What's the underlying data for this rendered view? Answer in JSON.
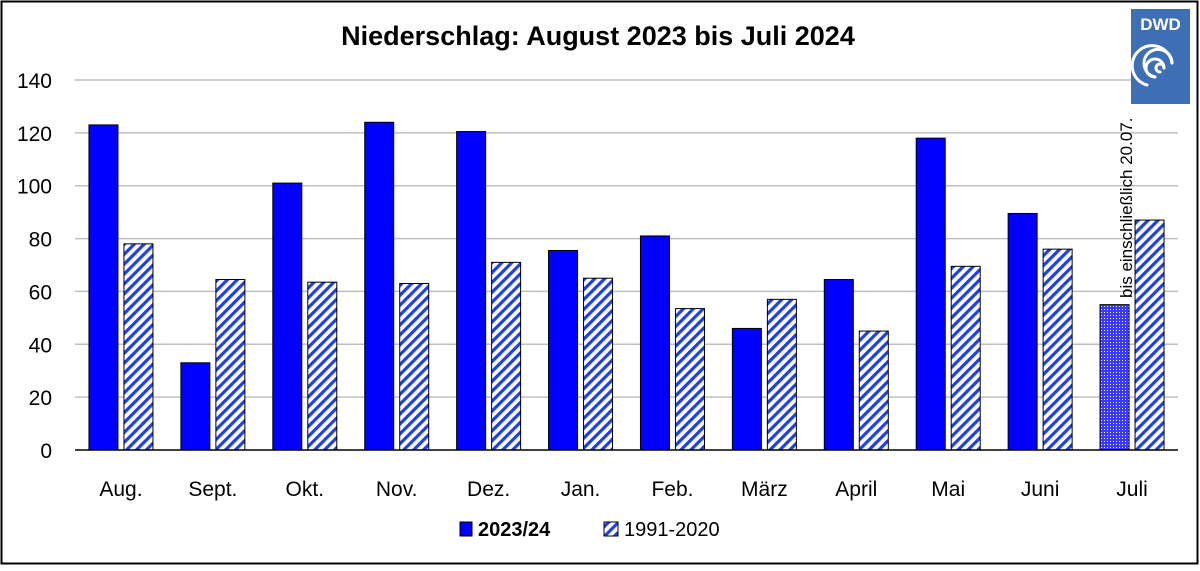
{
  "logo": {
    "text": "DWD"
  },
  "colors": {
    "current": "#0000FF",
    "normal_hatch": "#1F3FE8",
    "frame": "#000000",
    "grid": "#BFBFBF",
    "logo_bg": "#3E6FB5"
  },
  "chart_data": {
    "type": "bar",
    "title": "Niederschlag: August 2023 bis Juli 2024",
    "xlabel": "",
    "ylabel": "",
    "ylim": [
      0,
      140
    ],
    "yticks": [
      0,
      20,
      40,
      60,
      80,
      100,
      120,
      140
    ],
    "grid": true,
    "legend_position": "bottom",
    "categories": [
      "Aug.",
      "Sept.",
      "Okt.",
      "Nov.",
      "Dez.",
      "Jan.",
      "Feb.",
      "März",
      "April",
      "Mai",
      "Juni",
      "Juli"
    ],
    "series": [
      {
        "name": "2023/24",
        "style": "solid",
        "values": [
          123,
          33,
          101,
          124,
          120.5,
          75.5,
          81,
          46,
          64.5,
          118,
          89.5,
          55
        ],
        "partial_last": true
      },
      {
        "name": "1991-2020",
        "style": "hatched",
        "values": [
          78,
          64.5,
          63.5,
          63,
          71,
          65,
          53.5,
          57,
          45,
          69.5,
          76,
          87
        ]
      }
    ],
    "annotations": [
      {
        "text": "bis einschließlich 20.07.",
        "category": "Juli",
        "orientation": "vertical"
      }
    ]
  }
}
